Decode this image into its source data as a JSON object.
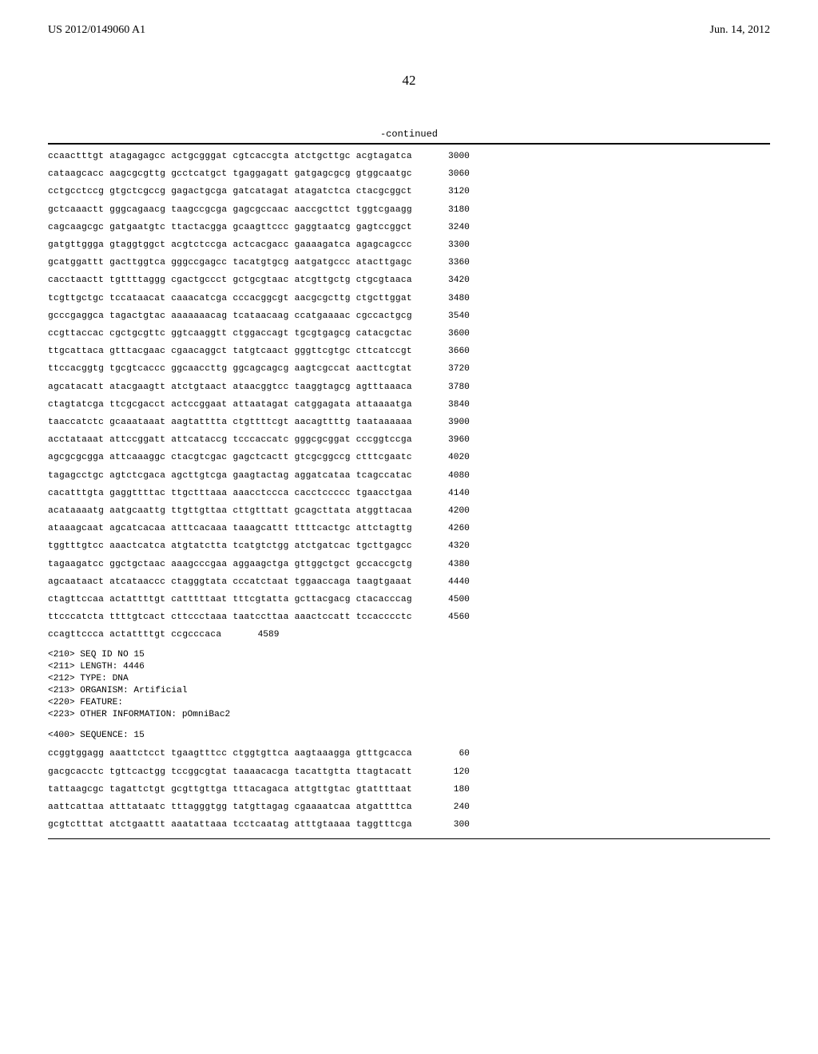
{
  "header": {
    "left": "US 2012/0149060 A1",
    "right": "Jun. 14, 2012"
  },
  "page_number": "42",
  "continued_label": "-continued",
  "sequence_block_1": [
    {
      "seq": "ccaactttgt atagagagcc actgcgggat cgtcaccgta atctgcttgc acgtagatca",
      "num": "3000"
    },
    {
      "seq": "cataagcacc aagcgcgttg gcctcatgct tgaggagatt gatgagcgcg gtggcaatgc",
      "num": "3060"
    },
    {
      "seq": "cctgcctccg gtgctcgccg gagactgcga gatcatagat atagatctca ctacgcggct",
      "num": "3120"
    },
    {
      "seq": "gctcaaactt gggcagaacg taagccgcga gagcgccaac aaccgcttct tggtcgaagg",
      "num": "3180"
    },
    {
      "seq": "cagcaagcgc gatgaatgtc ttactacgga gcaagttccc gaggtaatcg gagtccggct",
      "num": "3240"
    },
    {
      "seq": "gatgttggga gtaggtggct acgtctccga actcacgacc gaaaagatca agagcagccc",
      "num": "3300"
    },
    {
      "seq": "gcatggattt gacttggtca gggccgagcc tacatgtgcg aatgatgccc atacttgagc",
      "num": "3360"
    },
    {
      "seq": "cacctaactt tgttttaggg cgactgccct gctgcgtaac atcgttgctg ctgcgtaaca",
      "num": "3420"
    },
    {
      "seq": "tcgttgctgc tccataacat caaacatcga cccacggcgt aacgcgcttg ctgcttggat",
      "num": "3480"
    },
    {
      "seq": "gcccgaggca tagactgtac aaaaaaacag tcataacaag ccatgaaaac cgccactgcg",
      "num": "3540"
    },
    {
      "seq": "ccgttaccac cgctgcgttc ggtcaaggtt ctggaccagt tgcgtgagcg catacgctac",
      "num": "3600"
    },
    {
      "seq": "ttgcattaca gtttacgaac cgaacaggct tatgtcaact gggttcgtgc cttcatccgt",
      "num": "3660"
    },
    {
      "seq": "ttccacggtg tgcgtcaccc ggcaaccttg ggcagcagcg aagtcgccat aacttcgtat",
      "num": "3720"
    },
    {
      "seq": "agcatacatt atacgaagtt atctgtaact ataacggtcc taaggtagcg agtttaaaca",
      "num": "3780"
    },
    {
      "seq": "ctagtatcga ttcgcgacct actccggaat attaatagat catggagata attaaaatga",
      "num": "3840"
    },
    {
      "seq": "taaccatctc gcaaataaat aagtatttta ctgttttcgt aacagttttg taataaaaaa",
      "num": "3900"
    },
    {
      "seq": "acctataaat attccggatt attcataccg tcccaccatc gggcgcggat cccggtccga",
      "num": "3960"
    },
    {
      "seq": "agcgcgcgga attcaaaggc ctacgtcgac gagctcactt gtcgcggccg ctttcgaatc",
      "num": "4020"
    },
    {
      "seq": "tagagcctgc agtctcgaca agcttgtcga gaagtactag aggatcataa tcagccatac",
      "num": "4080"
    },
    {
      "seq": "cacatttgta gaggttttac ttgctttaaa aaacctccca cacctccccc tgaacctgaa",
      "num": "4140"
    },
    {
      "seq": "acataaaatg aatgcaattg ttgttgttaa cttgtttatt gcagcttata atggttacaa",
      "num": "4200"
    },
    {
      "seq": "ataaagcaat agcatcacaa atttcacaaa taaagcattt ttttcactgc attctagttg",
      "num": "4260"
    },
    {
      "seq": "tggtttgtcc aaactcatca atgtatctta tcatgtctgg atctgatcac tgcttgagcc",
      "num": "4320"
    },
    {
      "seq": "tagaagatcc ggctgctaac aaagcccgaa aggaagctga gttggctgct gccaccgctg",
      "num": "4380"
    },
    {
      "seq": "agcaataact atcataaccc ctagggtata cccatctaat tggaaccaga taagtgaaat",
      "num": "4440"
    },
    {
      "seq": "ctagttccaa actattttgt catttttaat tttcgtatta gcttacgacg ctacacccag",
      "num": "4500"
    },
    {
      "seq": "ttcccatcta ttttgtcact cttccctaaa taatccttaa aaactccatt tccacccctc",
      "num": "4560"
    },
    {
      "seq": "ccagttccca actattttgt ccgcccaca",
      "num": "4589"
    }
  ],
  "meta": {
    "seq_id": "<210> SEQ ID NO 15",
    "length": "<211> LENGTH: 4446",
    "type": "<212> TYPE: DNA",
    "organism": "<213> ORGANISM: Artificial",
    "feature": "<220> FEATURE:",
    "other": "<223> OTHER INFORMATION: pOmniBac2"
  },
  "sequence_label": "<400> SEQUENCE: 15",
  "sequence_block_2": [
    {
      "seq": "ccggtggagg aaattctcct tgaagtttcc ctggtgttca aagtaaagga gtttgcacca",
      "num": "60"
    },
    {
      "seq": "gacgcacctc tgttcactgg tccggcgtat taaaacacga tacattgtta ttagtacatt",
      "num": "120"
    },
    {
      "seq": "tattaagcgc tagattctgt gcgttgttga tttacagaca attgttgtac gtattttaat",
      "num": "180"
    },
    {
      "seq": "aattcattaa atttataatc tttagggtgg tatgttagag cgaaaatcaa atgattttca",
      "num": "240"
    },
    {
      "seq": "gcgtctttat atctgaattt aaatattaaa tcctcaatag atttgtaaaa taggtttcga",
      "num": "300"
    }
  ],
  "styling": {
    "background_color": "#ffffff",
    "text_color": "#000000",
    "mono_font": "Courier New",
    "body_font": "Times New Roman",
    "seq_font_size": 11.2,
    "header_font_size": 14,
    "page_num_font_size": 17
  }
}
